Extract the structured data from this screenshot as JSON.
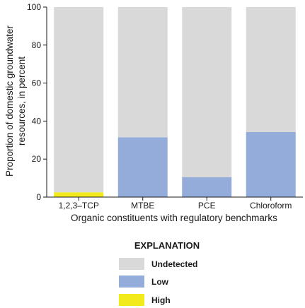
{
  "chart_data": {
    "type": "bar",
    "stacked": true,
    "categories": [
      "1,2,3–TCP",
      "MTBE",
      "PCE",
      "Chloroform"
    ],
    "series": [
      {
        "name": "Undetected",
        "color": "#d9d9d9",
        "values": [
          97.5,
          68.5,
          89.5,
          65.8
        ]
      },
      {
        "name": "Low",
        "color": "#94acd9",
        "values": [
          0,
          31.5,
          10.5,
          34.2
        ]
      },
      {
        "name": "High",
        "color": "#f2ea1a",
        "values": [
          2.5,
          0,
          0,
          0
        ]
      }
    ],
    "stack_order": [
      "High",
      "Low",
      "Undetected"
    ],
    "xlabel": "Organic constituents with regulatory benchmarks",
    "ylabel_lines": [
      "Proportion of domestic groundwater",
      "resources, in percent"
    ],
    "ylim": [
      0,
      100
    ],
    "yticks": [
      0,
      20,
      40,
      60,
      80,
      100
    ],
    "grid": false,
    "legend": {
      "title": "EXPLANATION",
      "placement": "bottom-center",
      "items": [
        "Undetected",
        "Low",
        "High"
      ]
    }
  }
}
